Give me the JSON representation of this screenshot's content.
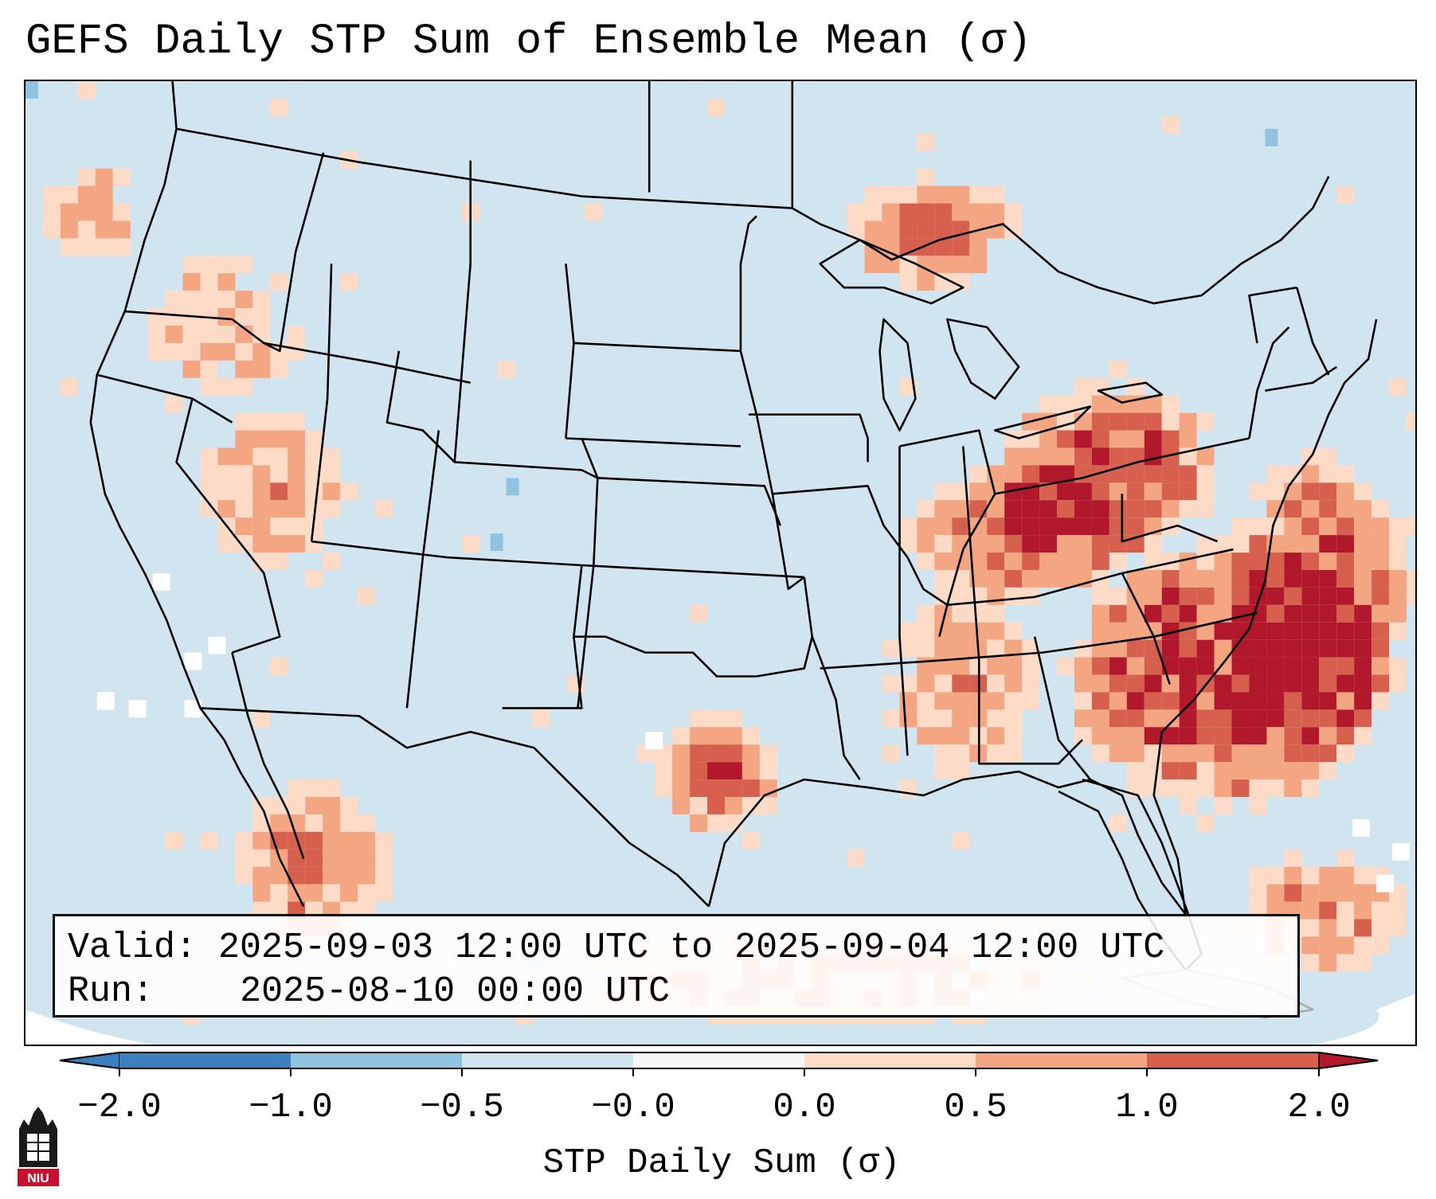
{
  "title": "GEFS Daily STP Sum of Ensemble Mean (σ)",
  "info": {
    "valid_label": "Valid:",
    "valid_value": "2025-09-03 12:00 UTC to 2025-09-04 12:00 UTC",
    "run_label": "Run:",
    "run_value": "2025-08-10 00:00 UTC"
  },
  "colorbar": {
    "label": "STP Daily Sum (σ)",
    "ticks": [
      "−2.0",
      "−1.0",
      "−0.5",
      "−0.0",
      "0.0",
      "0.5",
      "1.0",
      "2.0"
    ],
    "colors": [
      "#3b7fbf",
      "#8fc3e0",
      "#d1e5f0",
      "#f7f7f7",
      "#fddbc7",
      "#f4a582",
      "#d6604d",
      "#b2182b"
    ],
    "extend": "both"
  },
  "map": {
    "background_color": "#d1e5f0",
    "cell_colors": {
      "1": "#fddbc7",
      "2": "#f4a582",
      "3": "#d6604d",
      "4": "#b2182b",
      "w": "#ffffff",
      "b": "#8fc3e0"
    }
  },
  "logo": {
    "text": "NIU",
    "color": "#c8102e"
  }
}
